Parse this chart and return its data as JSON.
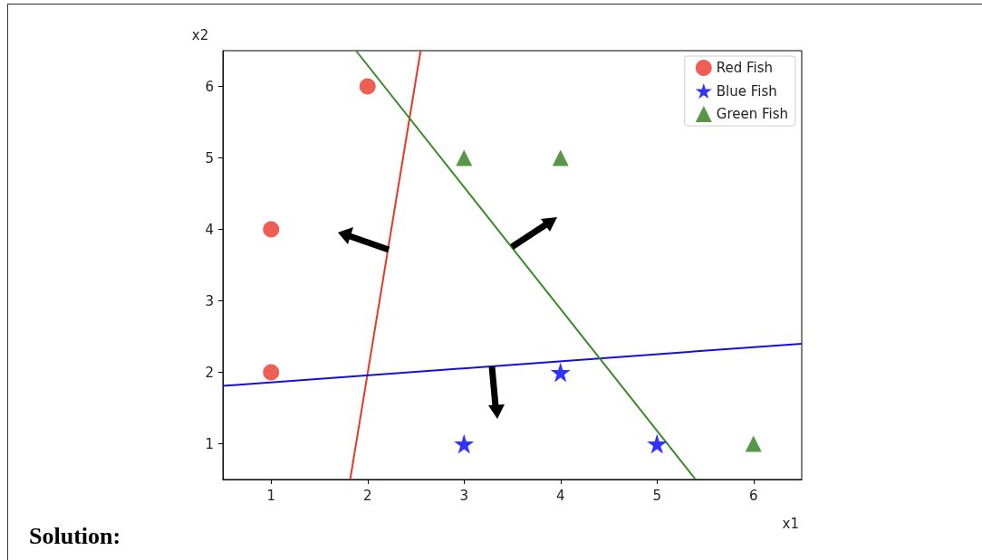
{
  "chart_data": {
    "type": "scatter",
    "xlabel": "x1",
    "ylabel": "x2",
    "xlim": [
      0.5,
      6.5
    ],
    "ylim": [
      0.5,
      6.5
    ],
    "xticks": [
      1,
      2,
      3,
      4,
      5,
      6
    ],
    "yticks": [
      1,
      2,
      3,
      4,
      5,
      6
    ],
    "grid": false,
    "legend": "top right",
    "annotations": [
      "Solution:"
    ],
    "series": [
      {
        "name": "Red Fish",
        "color": "#e8372a",
        "marker": "circle",
        "x": [
          1,
          1,
          2
        ],
        "values": [
          2,
          4,
          6
        ]
      },
      {
        "name": "Blue Fish",
        "color": "#0000ff",
        "marker": "star",
        "x": [
          3,
          4,
          5
        ],
        "values": [
          1,
          2,
          1
        ]
      },
      {
        "name": "Green Fish",
        "color": "#2e7d1a",
        "marker": "triangle",
        "x": [
          3,
          4,
          6
        ],
        "values": [
          5,
          5,
          1
        ]
      },
      {
        "type": "line",
        "color": "#e8372a",
        "marker": "none",
        "x": [
          1.82,
          2.55
        ],
        "values": [
          0.5,
          6.5
        ]
      },
      {
        "type": "line",
        "color": "#1010e0",
        "marker": "none",
        "x": [
          0.5,
          6.5
        ],
        "values": [
          1.81,
          2.4
        ]
      },
      {
        "type": "line",
        "color": "#3a8a2a",
        "marker": "none",
        "x": [
          1.88,
          5.4
        ],
        "values": [
          6.5,
          0.5
        ]
      }
    ]
  }
}
